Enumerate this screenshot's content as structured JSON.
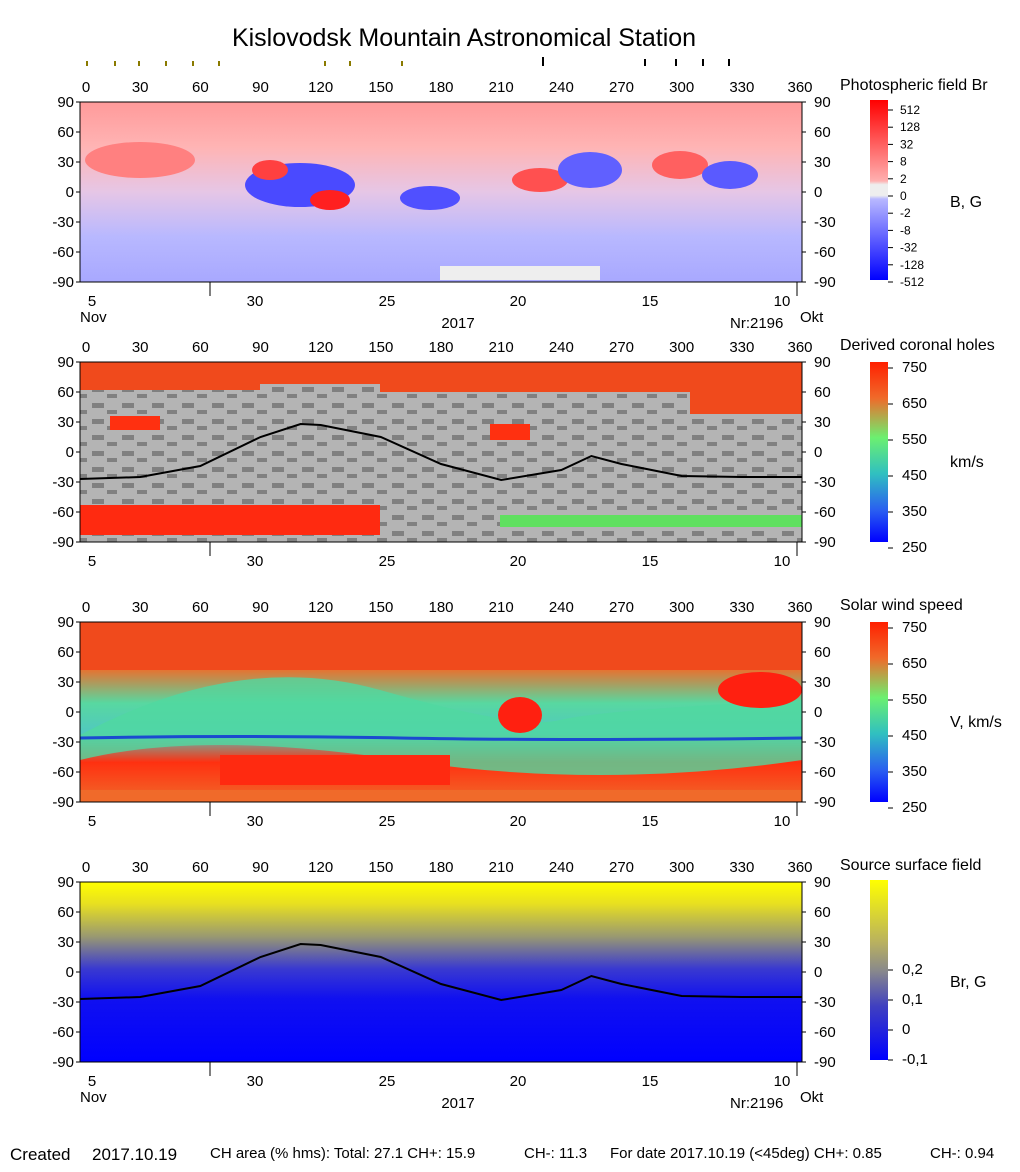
{
  "title": "Kislovodsk Mountain Astronomical Station",
  "longitude_ticks": [
    "0",
    "30",
    "60",
    "90",
    "120",
    "150",
    "180",
    "210",
    "240",
    "270",
    "300",
    "330",
    "360"
  ],
  "latitude_ticks": [
    "90",
    "60",
    "30",
    "0",
    "-30",
    "-60",
    "-90"
  ],
  "date_ticks": [
    "5",
    "30",
    "25",
    "20",
    "15",
    "10"
  ],
  "month_left": "Nov",
  "month_right": "Okt",
  "year": "2017",
  "rotation": "Nr:2196",
  "panels": [
    {
      "name": "Photospheric field Br",
      "unit": "B, G",
      "scale_labels": [
        "512",
        "128",
        "32",
        "8",
        "2",
        "0",
        "-2",
        "-8",
        "-32",
        "-128",
        "-512"
      ]
    },
    {
      "name": "Derived coronal holes",
      "unit": "km/s",
      "scale_labels": [
        "750",
        "650",
        "550",
        "450",
        "350",
        "250"
      ]
    },
    {
      "name": "Solar wind speed",
      "unit": "V, km/s",
      "scale_labels": [
        "750",
        "650",
        "550",
        "450",
        "350",
        "250"
      ]
    },
    {
      "name": "Source surface field",
      "unit": "Br, G",
      "scale_labels": [
        "0,2",
        "0,1",
        "0",
        "-0,1"
      ]
    }
  ],
  "footer": {
    "created_label": "Created",
    "created_date": "2017.10.19",
    "ch_area": "CH area (% hms): Total: 27.1 CH+: 15.9",
    "ch_minus": "CH-: 11.3",
    "for_date": "For date 2017.10.19 (<45deg) CH+: 0.85",
    "for_date_minus": "CH-: 0.94"
  },
  "chart_data": [
    {
      "type": "heatmap",
      "title": "Photospheric field Br",
      "xlabel": "",
      "ylabel": "",
      "xlim": [
        0,
        360
      ],
      "ylim": [
        -90,
        90
      ],
      "colorbar_label": "B, G",
      "colorbar_ticks": [
        512,
        128,
        32,
        8,
        2,
        0,
        -2,
        -8,
        -32,
        -128,
        -512
      ],
      "colors": {
        "positive": "#ff0000",
        "negative": "#0000ff",
        "neutral": "#eeeeee"
      }
    },
    {
      "type": "heatmap",
      "title": "Derived coronal holes",
      "xlim": [
        0,
        360
      ],
      "ylim": [
        -90,
        90
      ],
      "colorbar_label": "km/s",
      "colorbar_ticks": [
        750,
        650,
        550,
        450,
        350,
        250
      ],
      "neutral_line": {
        "x": [
          0,
          30,
          60,
          90,
          110,
          120,
          150,
          180,
          210,
          240,
          255,
          270,
          300,
          330,
          360
        ],
        "y": [
          -27,
          -25,
          -14,
          15,
          28,
          27,
          15,
          -12,
          -28,
          -18,
          -4,
          -12,
          -24,
          -25,
          -25
        ]
      }
    },
    {
      "type": "heatmap",
      "title": "Solar wind speed",
      "xlim": [
        0,
        360
      ],
      "ylim": [
        -90,
        90
      ],
      "colorbar_label": "V, km/s",
      "colorbar_ticks": [
        750,
        650,
        550,
        450,
        350,
        250
      ]
    },
    {
      "type": "heatmap",
      "title": "Source surface field",
      "xlim": [
        0,
        360
      ],
      "ylim": [
        -90,
        90
      ],
      "colorbar_label": "Br, G",
      "colorbar_ticks": [
        0.2,
        0.1,
        0,
        -0.1
      ],
      "neutral_line": {
        "x": [
          0,
          30,
          60,
          90,
          110,
          120,
          150,
          180,
          210,
          240,
          255,
          270,
          300,
          330,
          360
        ],
        "y": [
          -27,
          -25,
          -14,
          15,
          28,
          27,
          15,
          -12,
          -28,
          -18,
          -4,
          -12,
          -24,
          -25,
          -25
        ]
      }
    }
  ]
}
